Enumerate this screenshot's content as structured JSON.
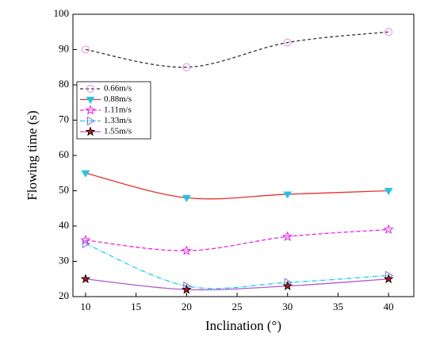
{
  "chart_data": {
    "type": "line",
    "xlabel": "Inclination (°)",
    "ylabel": "Flowing time (s)",
    "x": [
      10,
      20,
      30,
      40
    ],
    "xlim": [
      8.75,
      42.5
    ],
    "xticks": [
      10,
      15,
      20,
      25,
      30,
      35,
      40
    ],
    "ylim": [
      20,
      100
    ],
    "yticks": [
      20,
      30,
      40,
      50,
      60,
      70,
      80,
      90,
      100
    ],
    "legend": "upper left",
    "series": [
      {
        "name": "0.66m/s",
        "color": "#333333",
        "marker_color": "#e58ae5",
        "marker": "circle",
        "dash": "4,3",
        "values": [
          90,
          85,
          92,
          95
        ]
      },
      {
        "name": "0.88m/s",
        "color": "#e8312e",
        "marker_color": "#19c8e6",
        "marker": "triangle-down",
        "dash": "",
        "values": [
          55,
          48,
          49,
          50
        ]
      },
      {
        "name": "1.11m/s",
        "color": "#f020f0",
        "marker_color": "#f020f0",
        "marker": "star-open",
        "dash": "5,3",
        "values": [
          36,
          33,
          37,
          39
        ]
      },
      {
        "name": "1.33m/s",
        "color": "#18d0e8",
        "marker_color": "#8a6ae0",
        "marker": "triangle-right",
        "dash": "6,2,1,2",
        "values": [
          35,
          23,
          24,
          26
        ]
      },
      {
        "name": "1.55m/s",
        "color": "#b05ad0",
        "marker_color": "#b01818",
        "marker": "star",
        "dash": "",
        "values": [
          25,
          22,
          23,
          25
        ]
      }
    ]
  }
}
